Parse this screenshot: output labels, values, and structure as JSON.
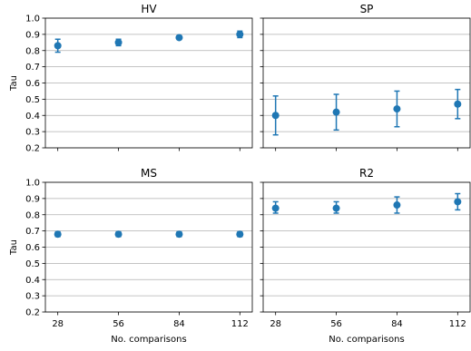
{
  "chart_data": [
    {
      "type": "scatter",
      "title": "HV",
      "xlabel": "",
      "ylabel": "Tau",
      "x": [
        28,
        56,
        84,
        112
      ],
      "xticks": [
        "28",
        "56",
        "84",
        "112"
      ],
      "ylim": [
        0.2,
        1.0
      ],
      "yticks": [
        "0.2",
        "0.3",
        "0.4",
        "0.5",
        "0.6",
        "0.7",
        "0.8",
        "0.9",
        "1.0"
      ],
      "grid": "horizontal",
      "errorbars": true,
      "series": [
        {
          "values": [
            0.83,
            0.85,
            0.88,
            0.9
          ],
          "err_low": [
            0.79,
            0.83,
            0.87,
            0.88
          ],
          "err_high": [
            0.87,
            0.87,
            0.89,
            0.92
          ]
        }
      ]
    },
    {
      "type": "scatter",
      "title": "SP",
      "xlabel": "",
      "ylabel": "",
      "x": [
        28,
        56,
        84,
        112
      ],
      "xticks": [
        "28",
        "56",
        "84",
        "112"
      ],
      "ylim": [
        0.2,
        1.0
      ],
      "yticks": [
        "0.2",
        "0.3",
        "0.4",
        "0.5",
        "0.6",
        "0.7",
        "0.8",
        "0.9",
        "1.0"
      ],
      "grid": "horizontal",
      "errorbars": true,
      "series": [
        {
          "values": [
            0.4,
            0.42,
            0.44,
            0.47
          ],
          "err_low": [
            0.28,
            0.31,
            0.33,
            0.38
          ],
          "err_high": [
            0.52,
            0.53,
            0.55,
            0.56
          ]
        }
      ]
    },
    {
      "type": "scatter",
      "title": "MS",
      "xlabel": "No. comparisons",
      "ylabel": "Tau",
      "x": [
        28,
        56,
        84,
        112
      ],
      "xticks": [
        "28",
        "56",
        "84",
        "112"
      ],
      "ylim": [
        0.2,
        1.0
      ],
      "yticks": [
        "0.2",
        "0.3",
        "0.4",
        "0.5",
        "0.6",
        "0.7",
        "0.8",
        "0.9",
        "1.0"
      ],
      "grid": "horizontal",
      "errorbars": true,
      "series": [
        {
          "values": [
            0.68,
            0.68,
            0.68,
            0.68
          ],
          "err_low": [
            0.665,
            0.665,
            0.665,
            0.665
          ],
          "err_high": [
            0.695,
            0.695,
            0.695,
            0.695
          ]
        }
      ]
    },
    {
      "type": "scatter",
      "title": "R2",
      "xlabel": "No. comparisons",
      "ylabel": "",
      "x": [
        28,
        56,
        84,
        112
      ],
      "xticks": [
        "28",
        "56",
        "84",
        "112"
      ],
      "ylim": [
        0.2,
        1.0
      ],
      "yticks": [
        "0.2",
        "0.3",
        "0.4",
        "0.5",
        "0.6",
        "0.7",
        "0.8",
        "0.9",
        "1.0"
      ],
      "grid": "horizontal",
      "errorbars": true,
      "series": [
        {
          "values": [
            0.84,
            0.84,
            0.86,
            0.88
          ],
          "err_low": [
            0.81,
            0.81,
            0.81,
            0.83
          ],
          "err_high": [
            0.88,
            0.88,
            0.91,
            0.93
          ]
        }
      ]
    }
  ],
  "colors": {
    "series": "#1f77b4",
    "grid": "#b0b0b0",
    "axis": "#000000"
  }
}
